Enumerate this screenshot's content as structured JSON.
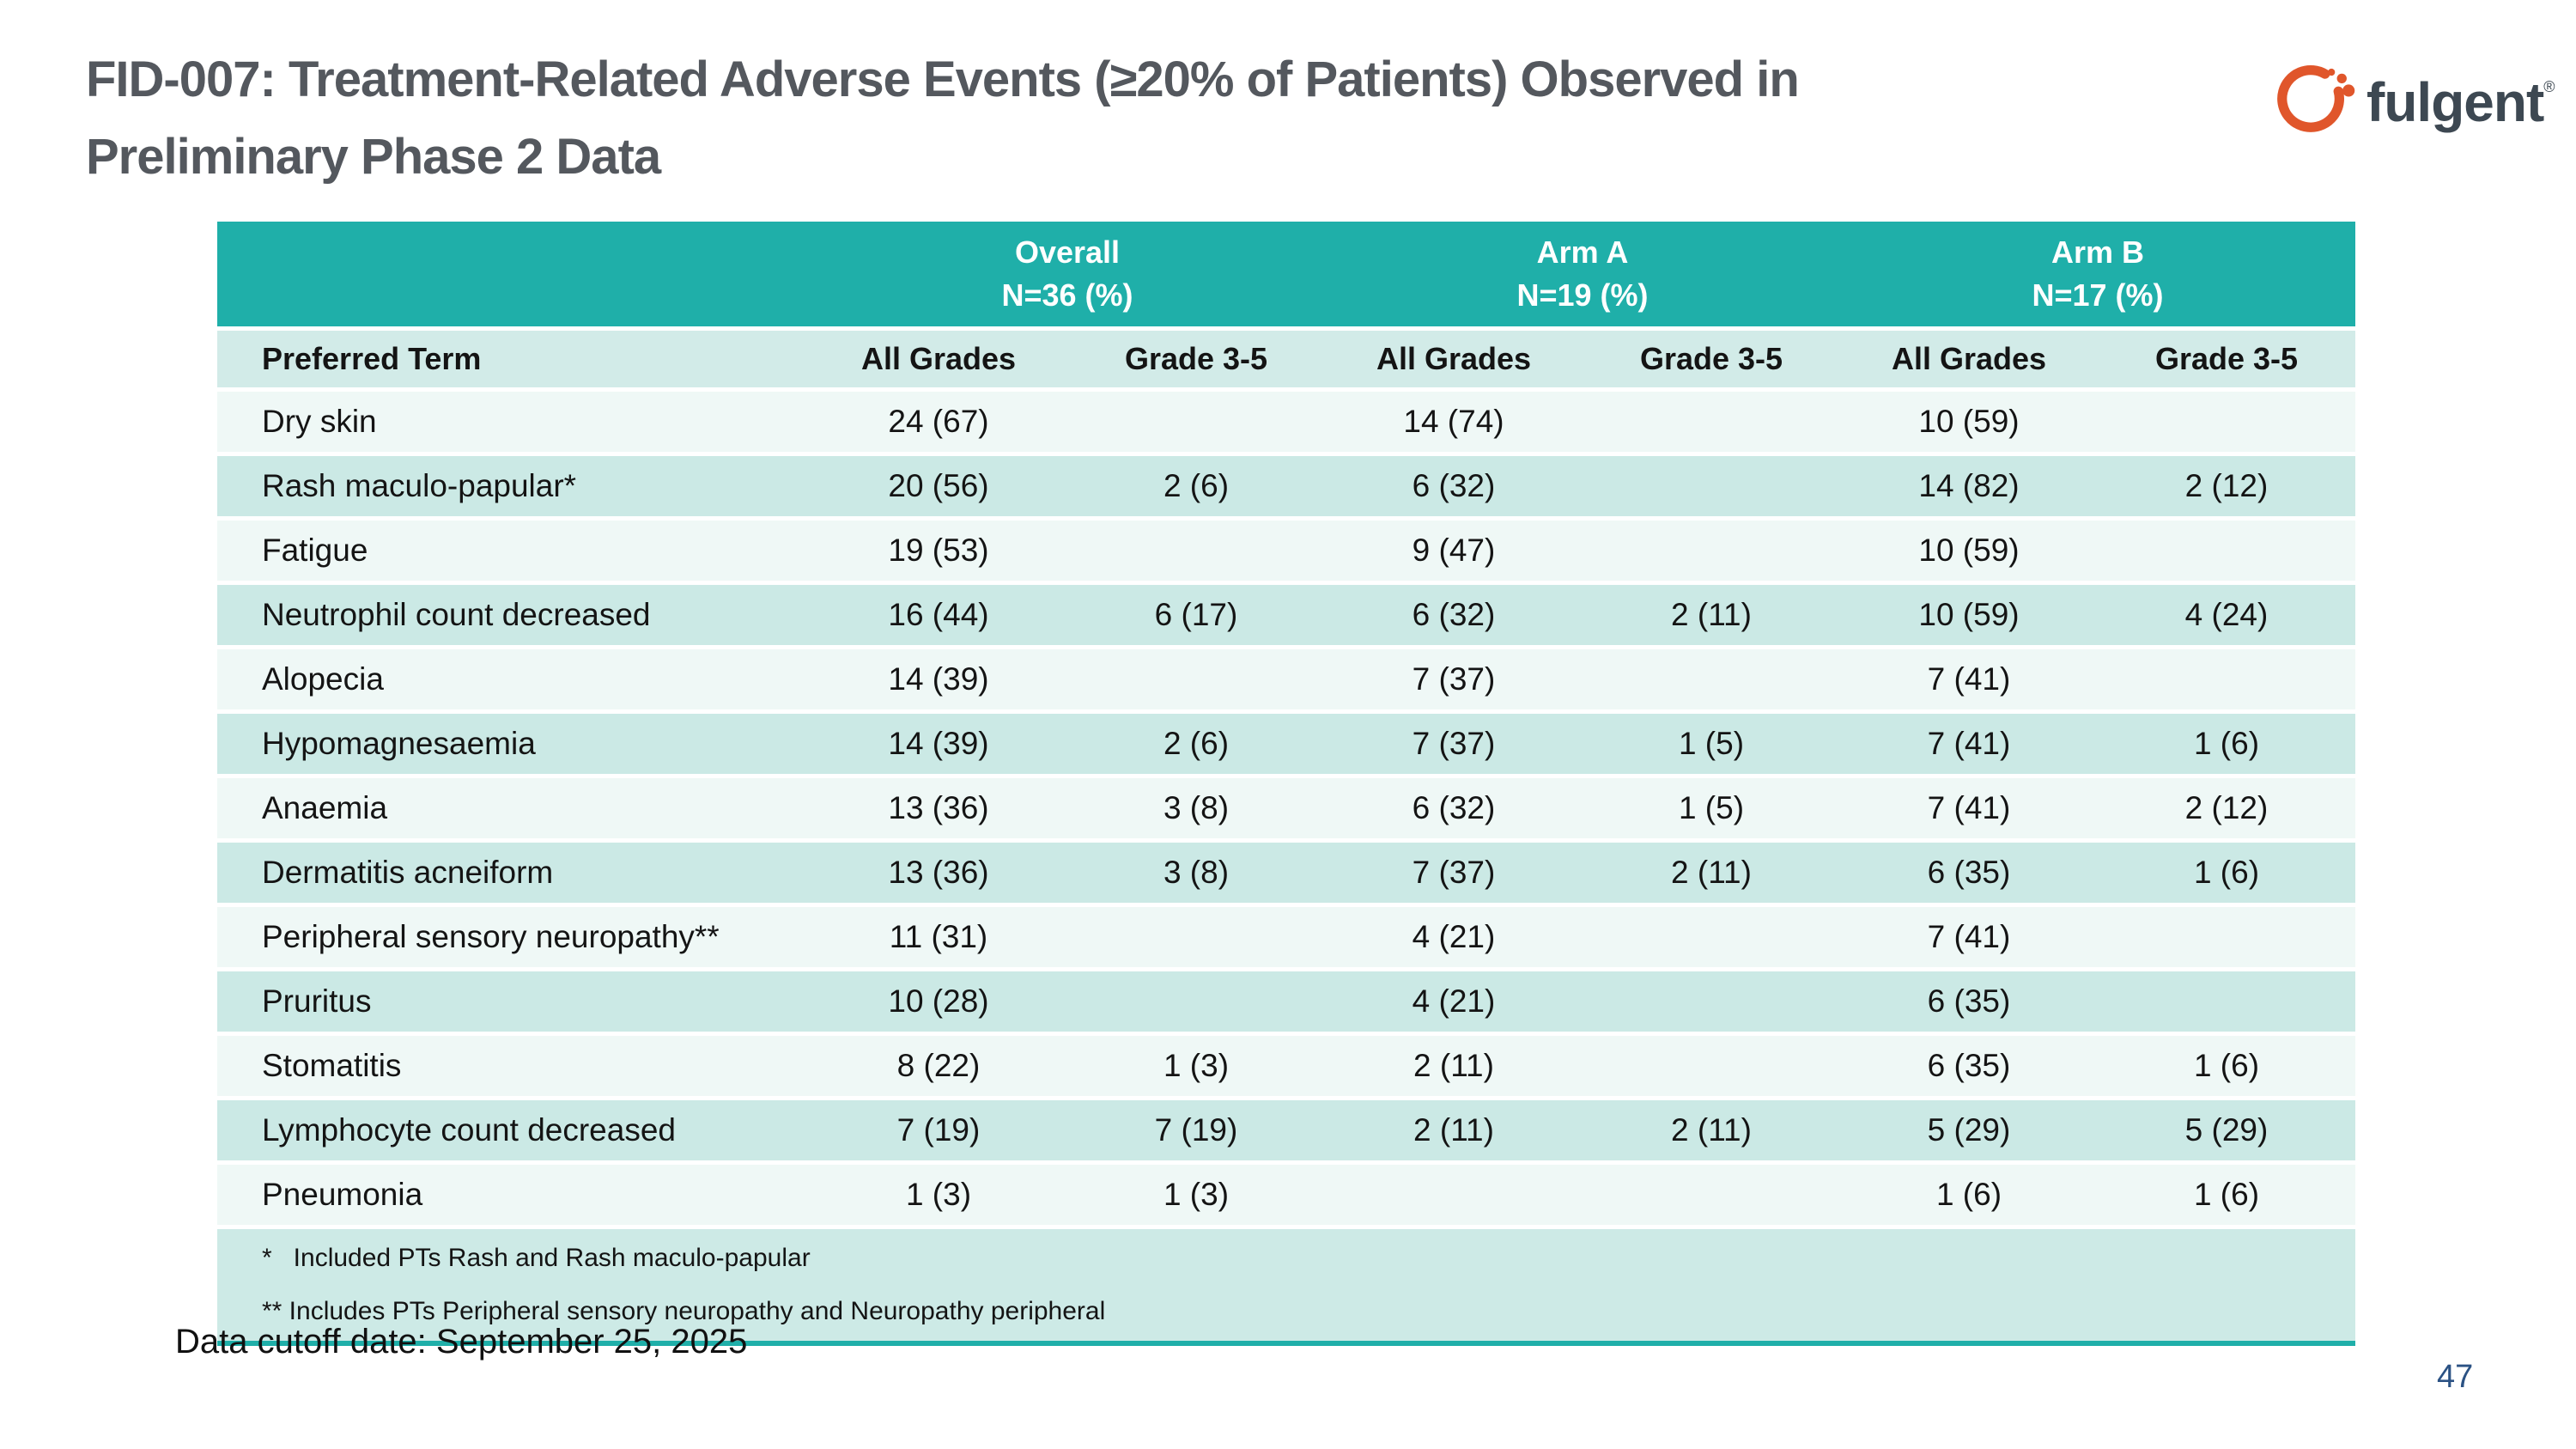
{
  "slide": {
    "title_line1": "FID-007: Treatment-Related Adverse Events (≥20% of Patients) Observed in",
    "title_line2": "Preliminary Phase 2 Data",
    "data_cutoff": "Data cutoff date: September 25, 2025",
    "page_number": "47"
  },
  "logo": {
    "wordmark": "fulgent",
    "registered_mark": "®",
    "orange": "#E0562B",
    "slate": "#3D4852"
  },
  "table": {
    "group_headers": [
      {
        "label": "Overall",
        "n": "N=36 (%)"
      },
      {
        "label": "Arm A",
        "n": "N=19 (%)"
      },
      {
        "label": "Arm B",
        "n": "N=17 (%)"
      }
    ],
    "column_headers": [
      "Preferred Term",
      "All Grades",
      "Grade 3-5",
      "All Grades",
      "Grade 3-5",
      "All Grades",
      "Grade 3-5"
    ],
    "rows": [
      {
        "term": "Dry skin",
        "values": [
          "24 (67)",
          "",
          "14 (74)",
          "",
          "10 (59)",
          ""
        ]
      },
      {
        "term": "Rash maculo-papular*",
        "values": [
          "20 (56)",
          "2 (6)",
          "6 (32)",
          "",
          "14 (82)",
          "2 (12)"
        ]
      },
      {
        "term": "Fatigue",
        "values": [
          "19 (53)",
          "",
          "9 (47)",
          "",
          "10 (59)",
          ""
        ]
      },
      {
        "term": "Neutrophil count decreased",
        "values": [
          "16 (44)",
          "6 (17)",
          "6 (32)",
          "2 (11)",
          "10 (59)",
          "4 (24)"
        ]
      },
      {
        "term": "Alopecia",
        "values": [
          "14 (39)",
          "",
          "7 (37)",
          "",
          "7 (41)",
          ""
        ]
      },
      {
        "term": "Hypomagnesaemia",
        "values": [
          "14 (39)",
          "2 (6)",
          "7 (37)",
          "1 (5)",
          "7 (41)",
          "1 (6)"
        ]
      },
      {
        "term": "Anaemia",
        "values": [
          "13 (36)",
          "3 (8)",
          "6 (32)",
          "1 (5)",
          "7 (41)",
          "2 (12)"
        ]
      },
      {
        "term": "Dermatitis acneiform",
        "values": [
          "13 (36)",
          "3 (8)",
          "7 (37)",
          "2 (11)",
          "6 (35)",
          "1 (6)"
        ]
      },
      {
        "term": "Peripheral sensory neuropathy**",
        "values": [
          "11 (31)",
          "",
          "4 (21)",
          "",
          "7 (41)",
          ""
        ]
      },
      {
        "term": "Pruritus",
        "values": [
          "10 (28)",
          "",
          "4 (21)",
          "",
          "6 (35)",
          ""
        ]
      },
      {
        "term": "Stomatitis",
        "values": [
          "8 (22)",
          "1 (3)",
          "2 (11)",
          "",
          "6 (35)",
          "1 (6)"
        ]
      },
      {
        "term": "Lymphocyte count decreased",
        "values": [
          "7 (19)",
          "7 (19)",
          "2 (11)",
          "2 (11)",
          "5 (29)",
          "5 (29)"
        ]
      },
      {
        "term": "Pneumonia",
        "values": [
          "1 (3)",
          "1 (3)",
          "",
          "",
          "1 (6)",
          "1 (6)"
        ]
      }
    ],
    "footnotes": [
      "*   Included PTs Rash and Rash maculo-papular",
      "** Includes PTs Peripheral sensory neuropathy and Neuropathy peripheral"
    ],
    "colors": {
      "header_teal": "#1FAFA9",
      "subheader_bg": "#D2EBE8",
      "row_light": "#EFF8F6",
      "row_alt": "#CBE9E5",
      "footnote_bg": "#CDEAE6"
    }
  }
}
